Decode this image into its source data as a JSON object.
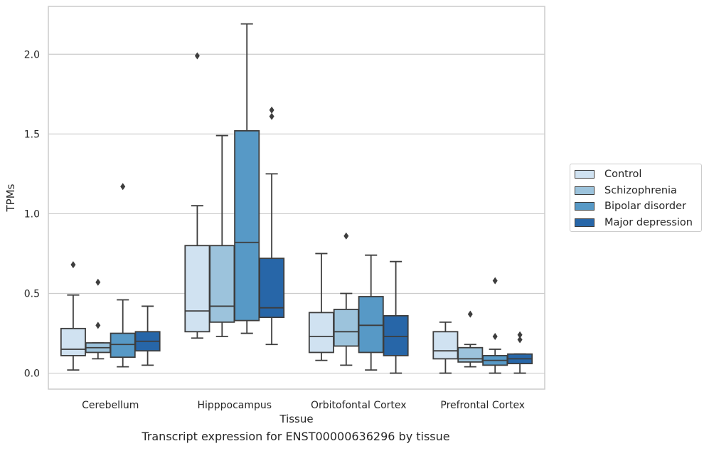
{
  "caption": "Transcript expression for ENST00000636296 by tissue",
  "chart_data": {
    "type": "boxplot",
    "xlabel": "Tissue",
    "ylabel": "TPMs",
    "ylim": [
      -0.1,
      2.3
    ],
    "yticks": [
      0.0,
      0.5,
      1.0,
      1.5,
      2.0
    ],
    "ytick_labels": [
      "0.0",
      "0.5",
      "1.0",
      "1.5",
      "2.0"
    ],
    "grid": "horizontal",
    "legend_position": "right",
    "categories": [
      "Cerebellum",
      "Hipppocampus",
      "Orbitofontal Cortex",
      "Prefrontal Cortex"
    ],
    "series": [
      {
        "name": "Control",
        "color": "#d0e2f1",
        "boxes": [
          {
            "whislo": 0.02,
            "q1": 0.11,
            "med": 0.15,
            "q3": 0.28,
            "whishi": 0.49,
            "fliers": [
              0.68
            ]
          },
          {
            "whislo": 0.22,
            "q1": 0.26,
            "med": 0.39,
            "q3": 0.8,
            "whishi": 1.05,
            "fliers": [
              1.99
            ]
          },
          {
            "whislo": 0.08,
            "q1": 0.13,
            "med": 0.23,
            "q3": 0.38,
            "whishi": 0.75,
            "fliers": []
          },
          {
            "whislo": 0.0,
            "q1": 0.09,
            "med": 0.14,
            "q3": 0.26,
            "whishi": 0.32,
            "fliers": []
          }
        ]
      },
      {
        "name": "Schizophrenia",
        "color": "#9cc3dc",
        "boxes": [
          {
            "whislo": 0.09,
            "q1": 0.13,
            "med": 0.16,
            "q3": 0.19,
            "whishi": 0.19,
            "fliers": [
              0.57,
              0.3
            ]
          },
          {
            "whislo": 0.23,
            "q1": 0.32,
            "med": 0.42,
            "q3": 0.8,
            "whishi": 1.49,
            "fliers": []
          },
          {
            "whislo": 0.05,
            "q1": 0.17,
            "med": 0.26,
            "q3": 0.4,
            "whishi": 0.5,
            "fliers": [
              0.86
            ]
          },
          {
            "whislo": 0.04,
            "q1": 0.07,
            "med": 0.09,
            "q3": 0.16,
            "whishi": 0.18,
            "fliers": [
              0.37
            ]
          }
        ]
      },
      {
        "name": "Bipolar disorder",
        "color": "#5799c6",
        "boxes": [
          {
            "whislo": 0.04,
            "q1": 0.1,
            "med": 0.18,
            "q3": 0.25,
            "whishi": 0.46,
            "fliers": [
              1.17
            ]
          },
          {
            "whislo": 0.25,
            "q1": 0.33,
            "med": 0.82,
            "q3": 1.52,
            "whishi": 2.19,
            "fliers": []
          },
          {
            "whislo": 0.02,
            "q1": 0.13,
            "med": 0.3,
            "q3": 0.48,
            "whishi": 0.74,
            "fliers": []
          },
          {
            "whislo": 0.0,
            "q1": 0.05,
            "med": 0.08,
            "q3": 0.11,
            "whishi": 0.15,
            "fliers": [
              0.58,
              0.23
            ]
          }
        ]
      },
      {
        "name": "Major depression",
        "color": "#2766a8",
        "boxes": [
          {
            "whislo": 0.05,
            "q1": 0.14,
            "med": 0.2,
            "q3": 0.26,
            "whishi": 0.42,
            "fliers": []
          },
          {
            "whislo": 0.18,
            "q1": 0.35,
            "med": 0.41,
            "q3": 0.72,
            "whishi": 1.25,
            "fliers": [
              1.65,
              1.61
            ]
          },
          {
            "whislo": 0.0,
            "q1": 0.11,
            "med": 0.23,
            "q3": 0.36,
            "whishi": 0.7,
            "fliers": []
          },
          {
            "whislo": 0.0,
            "q1": 0.06,
            "med": 0.09,
            "q3": 0.12,
            "whishi": 0.12,
            "fliers": [
              0.24,
              0.21
            ]
          }
        ]
      }
    ]
  }
}
